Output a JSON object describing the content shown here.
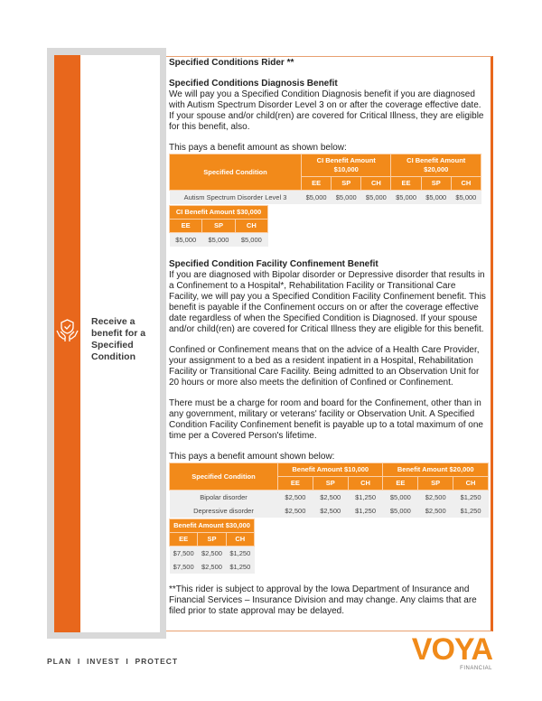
{
  "sidebar": {
    "label": "Receive a benefit for a Specified Condition",
    "icon": "hands-shield-check-icon"
  },
  "rider_title": "Specified Conditions Rider **",
  "diagnosis": {
    "title": "Specified Conditions Diagnosis Benefit",
    "body": "We will pay you a Specified Condition Diagnosis benefit if you are diagnosed with Autism Spectrum Disorder Level 3 on or after the coverage effective date. If your spouse and/or child(ren) are covered for Critical Illness, they are eligible for this benefit, also.",
    "table_intro": "This pays a benefit amount as shown below:",
    "table": {
      "condition_header": "Specified Condition",
      "groups": [
        "CI Benefit Amount $10,000",
        "CI Benefit Amount $20,000",
        "CI Benefit Amount $30,000"
      ],
      "subheaders": [
        "EE",
        "SP",
        "CH"
      ],
      "rows": [
        {
          "condition": "Autism Spectrum Disorder Level 3",
          "values": [
            [
              "$5,000",
              "$5,000",
              "$5,000"
            ],
            [
              "$5,000",
              "$5,000",
              "$5,000"
            ],
            [
              "$5,000",
              "$5,000",
              "$5,000"
            ]
          ]
        }
      ]
    }
  },
  "confinement": {
    "title": "Specified Condition Facility Confinement Benefit",
    "body1": "If you are diagnosed with Bipolar disorder or Depressive disorder that results in a Confinement to a Hospital*, Rehabilitation Facility or Transitional Care Facility, we will pay you a Specified Condition Facility Confinement benefit. This benefit is payable if the Confinement occurs on or after the coverage effective date regardless of when the Specified Condition is Diagnosed. If your spouse and/or child(ren) are covered for Critical Illness they are eligible for this benefit.",
    "body2": "Confined or Confinement means that on the advice of a Health Care Provider, your assignment to a bed as a resident inpatient in a Hospital, Rehabilitation Facility or Transitional Care Facility. Being admitted to an Observation Unit for 20 hours or more also meets the definition of Confined or Confinement.",
    "body3": "There must be a charge for room and board for the Confinement, other than in any government, military or veterans' facility or Observation Unit.  A Specified Condition Facility Confinement benefit is payable up to a total maximum of one time per a Covered Person's lifetime.",
    "table_intro": "This pays a benefit amount shown below:",
    "table": {
      "condition_header": "Specified Condition",
      "groups": [
        "Benefit Amount $10,000",
        "Benefit Amount $20,000",
        "Benefit Amount $30,000"
      ],
      "subheaders": [
        "EE",
        "SP",
        "CH"
      ],
      "rows": [
        {
          "condition": "Bipolar disorder",
          "values": [
            [
              "$2,500",
              "$2,500",
              "$1,250"
            ],
            [
              "$5,000",
              "$2,500",
              "$1,250"
            ],
            [
              "$7,500",
              "$2,500",
              "$1,250"
            ]
          ]
        },
        {
          "condition": "Depressive disorder",
          "values": [
            [
              "$2,500",
              "$2,500",
              "$1,250"
            ],
            [
              "$5,000",
              "$2,500",
              "$1,250"
            ],
            [
              "$7,500",
              "$2,500",
              "$1,250"
            ]
          ]
        }
      ]
    }
  },
  "footnote": "**This rider is subject to approval by the Iowa Department of Insurance and Financial Services – Insurance Division and may change.  Any claims that are filed prior to state approval may be delayed.",
  "footer": {
    "tagline": "PLAN  I  INVEST  I  PROTECT",
    "logo": "VOYA",
    "logo_sub": "FINANCIAL"
  },
  "colors": {
    "orange": "#e8671c",
    "table_header": "#f28a1a",
    "gray": "#d9d9d9"
  }
}
